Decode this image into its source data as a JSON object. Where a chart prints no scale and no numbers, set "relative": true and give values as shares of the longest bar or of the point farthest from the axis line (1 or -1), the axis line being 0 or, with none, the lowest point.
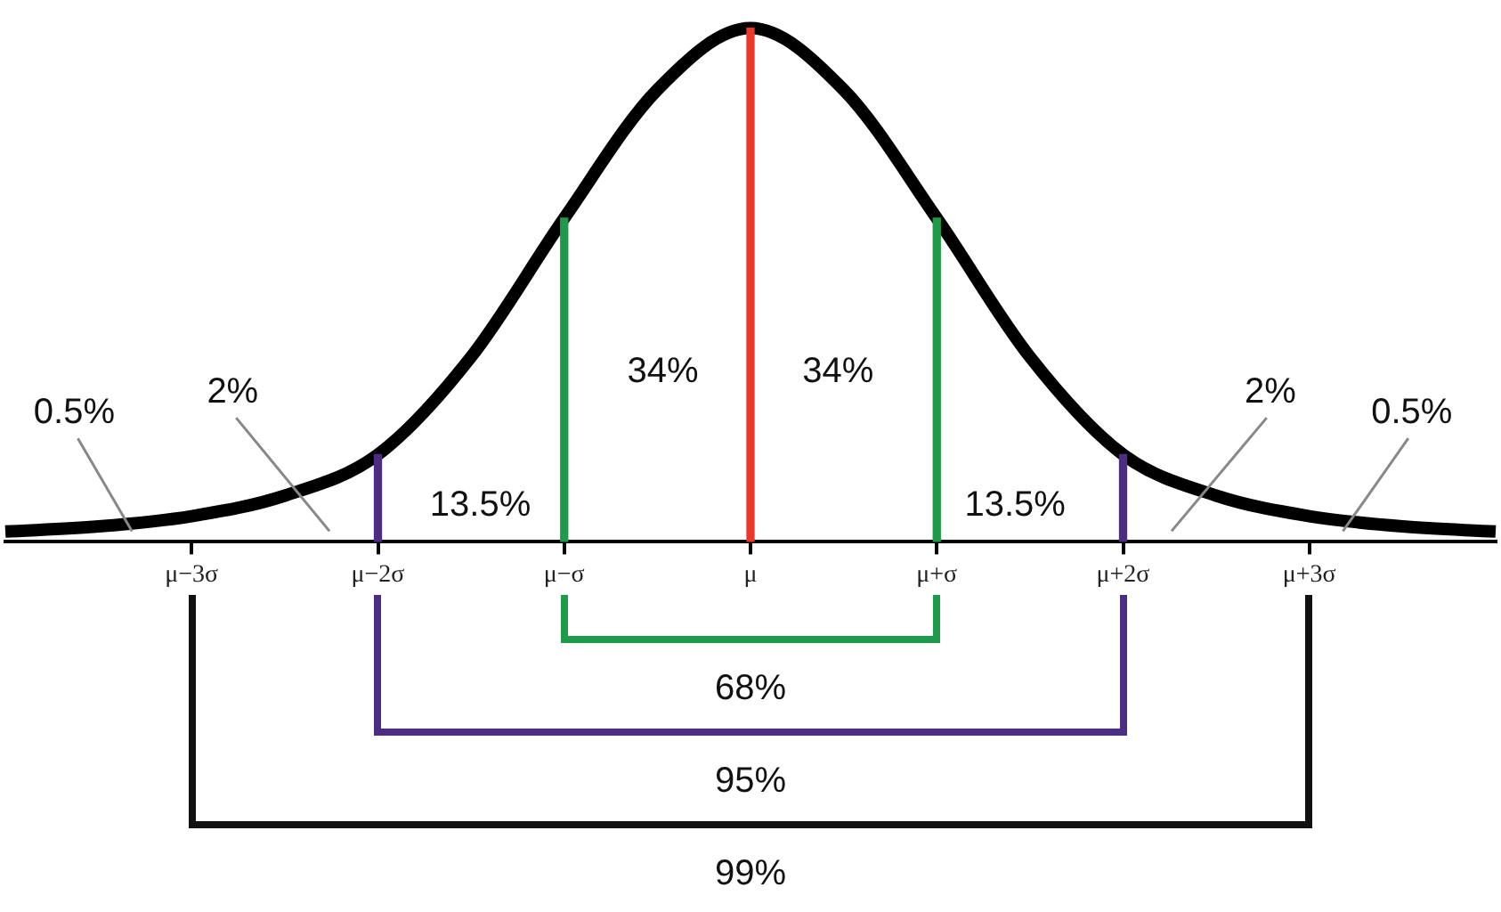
{
  "chart_data": {
    "type": "line",
    "relative": true,
    "legend": false,
    "marker": "none",
    "categories": [
      null,
      null,
      "μ−3σ",
      null,
      "μ−2σ",
      null,
      "μ−σ",
      null,
      "μ",
      null,
      "μ+σ",
      null,
      "μ+2σ",
      null,
      "μ+3σ",
      null,
      null
    ],
    "series": [
      {
        "color": "#000000",
        "values": [
          0.02,
          0.03,
          0.05,
          0.09,
          0.17,
          0.36,
          0.63,
          0.88,
          1,
          0.88,
          0.63,
          0.36,
          0.17,
          0.09,
          0.05,
          0.03,
          0.02
        ]
      },
      {
        "type": "bar",
        "colors": [
          "#000000",
          "#000000",
          "#000000",
          "#000000",
          "#4b2d83",
          "#000000",
          "#1e9a4a",
          "#000000",
          "#e8392b",
          "#000000",
          "#1e9a4a",
          "#000000",
          "#4b2d83",
          "#000000",
          "#000000",
          "#000000",
          "#000000"
        ],
        "values": [
          null,
          null,
          null,
          null,
          0.17,
          null,
          0.63,
          null,
          1,
          null,
          0.63,
          null,
          0.17,
          null,
          null,
          null,
          null
        ]
      }
    ],
    "annotations": [
      "34%",
      "34%",
      "13.5%",
      "13.5%",
      "2%",
      "2%",
      "0.5%",
      "0.5%",
      "68%",
      "95%",
      "99%"
    ]
  }
}
